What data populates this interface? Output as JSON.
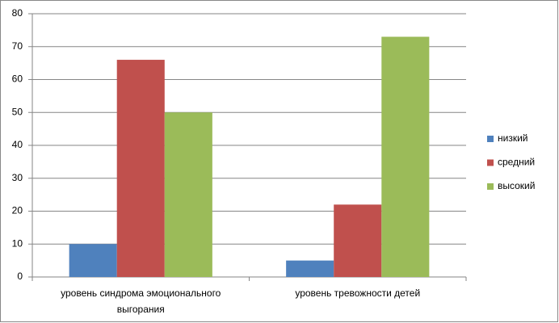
{
  "chart_data": {
    "type": "bar",
    "categories": [
      "уровень синдрома эмоционального выгорания",
      "уровень тревожности детей"
    ],
    "series": [
      {
        "name": "низкий",
        "color": "#4f81bd",
        "values": [
          10,
          5
        ]
      },
      {
        "name": "средний",
        "color": "#c0504d",
        "values": [
          66,
          22
        ]
      },
      {
        "name": "высокий",
        "color": "#9bbb59",
        "values": [
          50,
          73
        ]
      }
    ],
    "ylim": [
      0,
      80
    ],
    "yticks": [
      0,
      10,
      20,
      30,
      40,
      50,
      60,
      70,
      80
    ],
    "grid": true,
    "legend": "right"
  }
}
